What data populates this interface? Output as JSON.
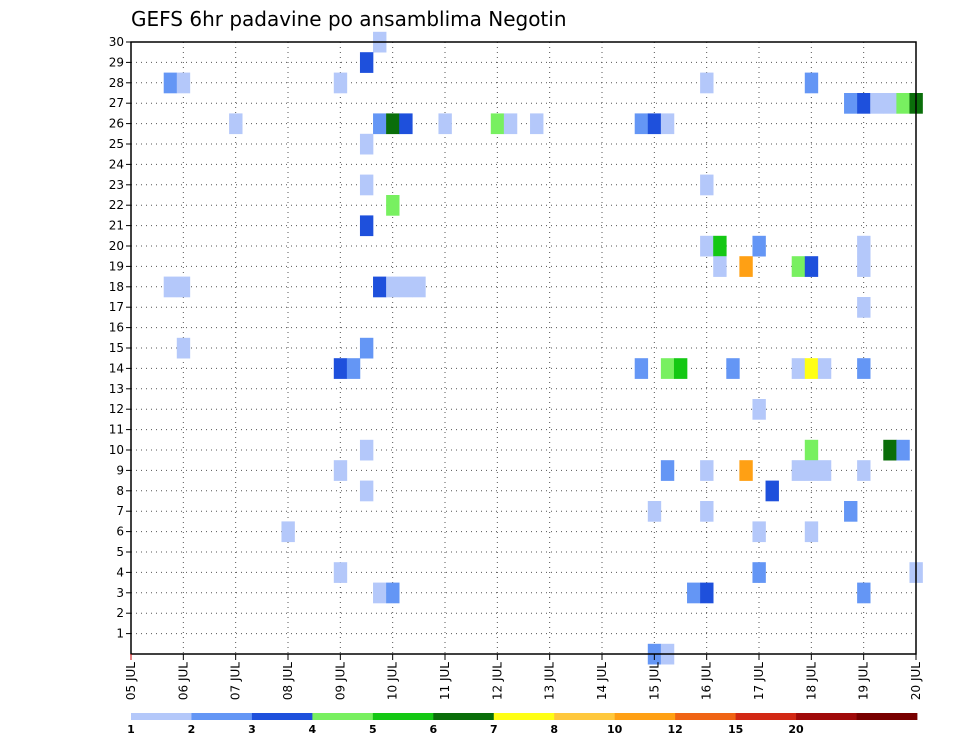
{
  "chart_data": {
    "type": "heatmap",
    "title": "GEFS 6hr padavine po ansamblima Negotin",
    "x_tick_labels": [
      "05 JUL",
      "06 JUL",
      "07 JUL",
      "08 JUL",
      "09 JUL",
      "10 JUL",
      "11 JUL",
      "12 JUL",
      "13 JUL",
      "14 JUL",
      "15 JUL",
      "16 JUL",
      "17 JUL",
      "18 JUL",
      "19 JUL",
      "20 JUL"
    ],
    "y_tick_labels": [
      "1",
      "2",
      "3",
      "4",
      "5",
      "6",
      "7",
      "8",
      "9",
      "10",
      "11",
      "12",
      "13",
      "14",
      "15",
      "16",
      "17",
      "18",
      "19",
      "20",
      "21",
      "22",
      "23",
      "24",
      "25",
      "26",
      "27",
      "28",
      "29",
      "30"
    ],
    "xlim": [
      0,
      15
    ],
    "ylim": [
      0,
      30
    ],
    "grid": true,
    "colorbar": {
      "labels": [
        "1",
        "2",
        "3",
        "4",
        "5",
        "6",
        "7",
        "8",
        "10",
        "12",
        "15",
        "20"
      ],
      "colors": [
        "#b4c8fa",
        "#6496f5",
        "#1e50dc",
        "#78f060",
        "#14c814",
        "#0a6e0a",
        "#ffff14",
        "#ffc83c",
        "#ffa014",
        "#f06414",
        "#d22814",
        "#a00a0a",
        "#780000"
      ]
    },
    "levels_legend": "cell value = colorbar bin index (0 = 1–2, 1 = 2–3, 2 = 3–4, 3 = 4–5, 4 = 5–6, 5 = 6–7, 6 = 7–8, 7 = 8–10, 8 = 10–12)",
    "cells": [
      {
        "x": 4.75,
        "m": 30,
        "v": 0
      },
      {
        "x": 4.5,
        "m": 29,
        "v": 2
      },
      {
        "x": 0.75,
        "m": 28,
        "v": 1
      },
      {
        "x": 1.0,
        "m": 28,
        "v": 0
      },
      {
        "x": 4.0,
        "m": 28,
        "v": 0
      },
      {
        "x": 11.0,
        "m": 28,
        "v": 0
      },
      {
        "x": 13.0,
        "m": 28,
        "v": 1
      },
      {
        "x": 13.75,
        "m": 27,
        "v": 1
      },
      {
        "x": 14.0,
        "m": 27,
        "v": 2
      },
      {
        "x": 14.25,
        "m": 27,
        "v": 0
      },
      {
        "x": 14.5,
        "m": 27,
        "v": 0
      },
      {
        "x": 14.75,
        "m": 27,
        "v": 3
      },
      {
        "x": 15.0,
        "m": 27,
        "v": 5
      },
      {
        "x": 2.0,
        "m": 26,
        "v": 0
      },
      {
        "x": 4.75,
        "m": 26,
        "v": 1
      },
      {
        "x": 5.0,
        "m": 26,
        "v": 5
      },
      {
        "x": 5.25,
        "m": 26,
        "v": 2
      },
      {
        "x": 6.0,
        "m": 26,
        "v": 0
      },
      {
        "x": 7.0,
        "m": 26,
        "v": 3
      },
      {
        "x": 7.25,
        "m": 26,
        "v": 0
      },
      {
        "x": 7.75,
        "m": 26,
        "v": 0
      },
      {
        "x": 9.75,
        "m": 26,
        "v": 1
      },
      {
        "x": 10.0,
        "m": 26,
        "v": 2
      },
      {
        "x": 10.25,
        "m": 26,
        "v": 0
      },
      {
        "x": 4.5,
        "m": 25,
        "v": 0
      },
      {
        "x": 4.5,
        "m": 23,
        "v": 0
      },
      {
        "x": 11.0,
        "m": 23,
        "v": 0
      },
      {
        "x": 5.0,
        "m": 22,
        "v": 3
      },
      {
        "x": 4.5,
        "m": 21,
        "v": 2
      },
      {
        "x": 11.0,
        "m": 20,
        "v": 0
      },
      {
        "x": 11.25,
        "m": 20,
        "v": 4
      },
      {
        "x": 12.0,
        "m": 20,
        "v": 1
      },
      {
        "x": 14.0,
        "m": 20,
        "v": 0
      },
      {
        "x": 11.25,
        "m": 19,
        "v": 0
      },
      {
        "x": 11.75,
        "m": 19,
        "v": 8
      },
      {
        "x": 12.75,
        "m": 19,
        "v": 3
      },
      {
        "x": 13.0,
        "m": 19,
        "v": 2
      },
      {
        "x": 14.0,
        "m": 19,
        "v": 0
      },
      {
        "x": 0.75,
        "m": 18,
        "v": 0
      },
      {
        "x": 1.0,
        "m": 18,
        "v": 0
      },
      {
        "x": 4.75,
        "m": 18,
        "v": 2
      },
      {
        "x": 5.0,
        "m": 18,
        "v": 0
      },
      {
        "x": 5.25,
        "m": 18,
        "v": 0
      },
      {
        "x": 5.5,
        "m": 18,
        "v": 0
      },
      {
        "x": 14.0,
        "m": 17,
        "v": 0
      },
      {
        "x": 1.0,
        "m": 15,
        "v": 0
      },
      {
        "x": 4.5,
        "m": 15,
        "v": 1
      },
      {
        "x": 4.0,
        "m": 14,
        "v": 2
      },
      {
        "x": 4.25,
        "m": 14,
        "v": 1
      },
      {
        "x": 9.75,
        "m": 14,
        "v": 1
      },
      {
        "x": 10.25,
        "m": 14,
        "v": 3
      },
      {
        "x": 10.5,
        "m": 14,
        "v": 4
      },
      {
        "x": 11.5,
        "m": 14,
        "v": 1
      },
      {
        "x": 12.75,
        "m": 14,
        "v": 0
      },
      {
        "x": 13.0,
        "m": 14,
        "v": 6
      },
      {
        "x": 13.25,
        "m": 14,
        "v": 0
      },
      {
        "x": 14.0,
        "m": 14,
        "v": 1
      },
      {
        "x": 12.0,
        "m": 12,
        "v": 0
      },
      {
        "x": 4.5,
        "m": 10,
        "v": 0
      },
      {
        "x": 13.0,
        "m": 10,
        "v": 3
      },
      {
        "x": 14.5,
        "m": 10,
        "v": 5
      },
      {
        "x": 14.75,
        "m": 10,
        "v": 1
      },
      {
        "x": 4.0,
        "m": 9,
        "v": 0
      },
      {
        "x": 10.25,
        "m": 9,
        "v": 1
      },
      {
        "x": 11.0,
        "m": 9,
        "v": 0
      },
      {
        "x": 11.75,
        "m": 9,
        "v": 8
      },
      {
        "x": 12.75,
        "m": 9,
        "v": 0
      },
      {
        "x": 13.0,
        "m": 9,
        "v": 0
      },
      {
        "x": 13.25,
        "m": 9,
        "v": 0
      },
      {
        "x": 14.0,
        "m": 9,
        "v": 0
      },
      {
        "x": 4.5,
        "m": 8,
        "v": 0
      },
      {
        "x": 12.25,
        "m": 8,
        "v": 2
      },
      {
        "x": 10.0,
        "m": 7,
        "v": 0
      },
      {
        "x": 11.0,
        "m": 7,
        "v": 0
      },
      {
        "x": 13.75,
        "m": 7,
        "v": 1
      },
      {
        "x": 3.0,
        "m": 6,
        "v": 0
      },
      {
        "x": 12.0,
        "m": 6,
        "v": 0
      },
      {
        "x": 13.0,
        "m": 6,
        "v": 0
      },
      {
        "x": 4.0,
        "m": 4,
        "v": 0
      },
      {
        "x": 12.0,
        "m": 4,
        "v": 1
      },
      {
        "x": 15.0,
        "m": 4,
        "v": 0
      },
      {
        "x": 4.75,
        "m": 3,
        "v": 0
      },
      {
        "x": 5.0,
        "m": 3,
        "v": 1
      },
      {
        "x": 10.75,
        "m": 3,
        "v": 1
      },
      {
        "x": 11.0,
        "m": 3,
        "v": 2
      },
      {
        "x": 14.0,
        "m": 3,
        "v": 1
      },
      {
        "x": 10.0,
        "m": 0,
        "v": 1
      },
      {
        "x": 10.25,
        "m": 0,
        "v": 0
      }
    ]
  }
}
